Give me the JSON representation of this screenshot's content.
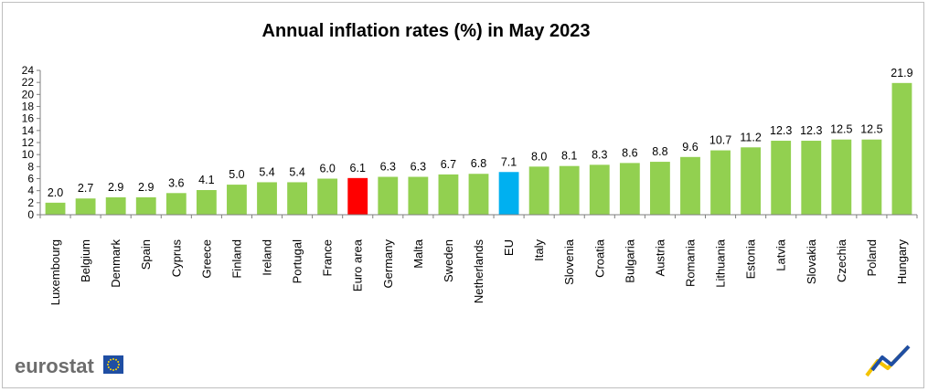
{
  "chart_data": {
    "type": "bar",
    "title": "Annual inflation rates (%) in May 2023",
    "xlabel": "",
    "ylabel": "",
    "ylim": [
      0,
      24
    ],
    "yticks": [
      0,
      2,
      4,
      6,
      8,
      10,
      12,
      14,
      16,
      18,
      20,
      22,
      24
    ],
    "grid": false,
    "categories": [
      "Luxembourg",
      "Belgium",
      "Denmark",
      "Spain",
      "Cyprus",
      "Greece",
      "Finland",
      "Ireland",
      "Portugal",
      "France",
      "Euro area",
      "Germany",
      "Malta",
      "Sweden",
      "Netherlands",
      "EU",
      "Italy",
      "Slovenia",
      "Croatia",
      "Bulgaria",
      "Austria",
      "Romania",
      "Lithuania",
      "Estonia",
      "Latvia",
      "Slovakia",
      "Czechia",
      "Poland",
      "Hungary"
    ],
    "values": [
      2.0,
      2.7,
      2.9,
      2.9,
      3.6,
      4.1,
      5.0,
      5.4,
      5.4,
      6.0,
      6.1,
      6.3,
      6.3,
      6.7,
      6.8,
      7.1,
      8.0,
      8.1,
      8.3,
      8.6,
      8.8,
      9.6,
      10.7,
      11.2,
      12.3,
      12.3,
      12.5,
      12.5,
      21.9
    ],
    "value_labels": [
      "2.0",
      "2.7",
      "2.9",
      "2.9",
      "3.6",
      "4.1",
      "5.0",
      "5.4",
      "5.4",
      "6.0",
      "6.1",
      "6.3",
      "6.3",
      "6.7",
      "6.8",
      "7.1",
      "8.0",
      "8.1",
      "8.3",
      "8.6",
      "8.8",
      "9.6",
      "10.7",
      "11.2",
      "12.3",
      "12.3",
      "12.5",
      "12.5",
      "21.9"
    ],
    "colors": {
      "default": "#92d050",
      "highlight": {
        "Euro area": "#ff0000",
        "EU": "#00b0f0"
      }
    }
  },
  "branding": {
    "logo_text": "eurostat",
    "logo_flag_icon": "eu-flag-icon",
    "corner_icon": "eurostat-swoosh-icon"
  }
}
